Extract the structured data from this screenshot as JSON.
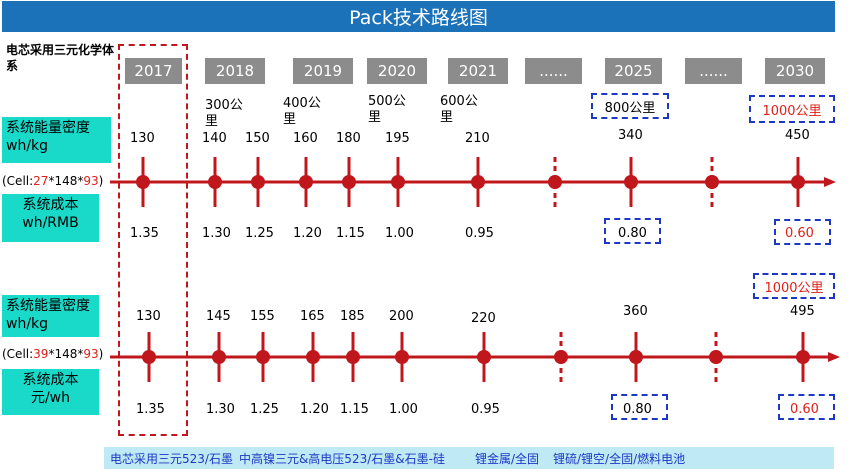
{
  "title": "Pack技术路线图",
  "corner_note": "电芯采用三元化学体系",
  "years": [
    "2017",
    "2018",
    "2019",
    "2020",
    "2021",
    "......",
    "2025",
    "......",
    "2030"
  ],
  "km_labels": [
    "300公里",
    "400公里",
    "500公里",
    "600公里"
  ],
  "km_boxes": {
    "row1_2025": "800公里",
    "row1_2030": "1000公里",
    "row2_2030": "1000公里"
  },
  "row1": {
    "density_label": "系统能量密度wh/kg",
    "cell_prefix": "(Cell:",
    "cell_a": "27",
    "cell_mid": "*148*",
    "cell_b": "93",
    "cell_suffix": ")",
    "cost_label": "系统成本wh/RMB",
    "density_values": [
      "130",
      "140",
      "150",
      "160",
      "180",
      "195",
      "210",
      "340",
      "450"
    ],
    "cost_values": [
      "1.35",
      "1.30",
      "1.25",
      "1.20",
      "1.15",
      "1.00",
      "0.95",
      "0.80",
      "0.60"
    ]
  },
  "row2": {
    "density_label": "系统能量密度wh/kg",
    "cell_prefix": "(Cell:",
    "cell_a": "39",
    "cell_mid": "*148*",
    "cell_b": "93",
    "cell_suffix": ")",
    "cost_label": "系统成本元/wh",
    "density_values": [
      "130",
      "145",
      "155",
      "165",
      "185",
      "200",
      "220",
      "360",
      "495"
    ],
    "cost_values": [
      "1.35",
      "1.30",
      "1.25",
      "1.20",
      "1.15",
      "1.00",
      "0.95",
      "0.80",
      "0.60"
    ]
  },
  "bottom_notes": [
    "电芯采用三元523/石墨",
    "中高镍三元&高电压523/石墨&石墨-硅",
    "锂金属/全固",
    "锂硫/锂空/全固/燃料电池"
  ],
  "colors": {
    "timeline": "#c0171d",
    "title_bar": "#1b72b8",
    "year_box": "#8c8c8c",
    "label_box": "#19d9c9",
    "dashed_box": "#1d39c4",
    "highlight": "#e0201a"
  }
}
